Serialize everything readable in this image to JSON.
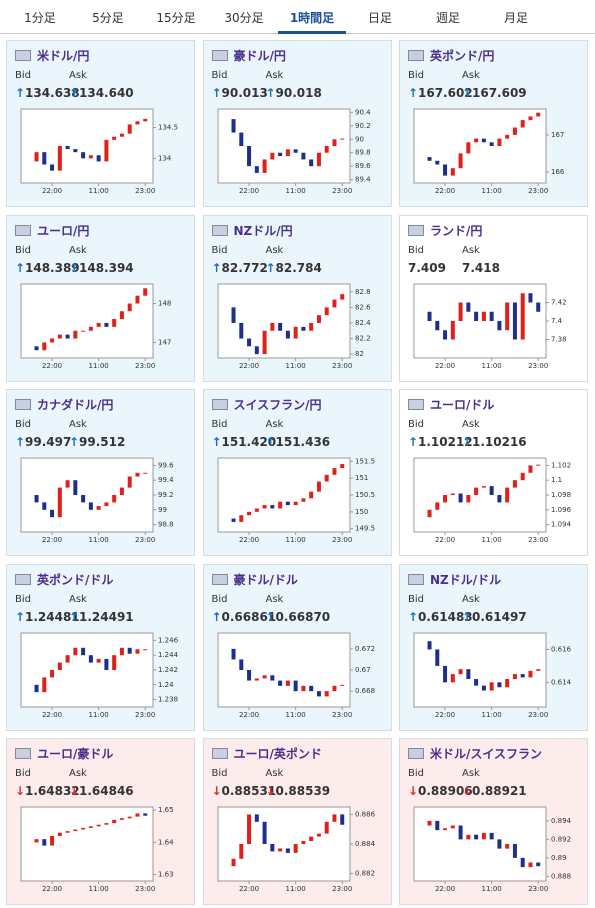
{
  "tabs": [
    "1分足",
    "5分足",
    "15分足",
    "30分足",
    "1時間足",
    "日足",
    "週足",
    "月足"
  ],
  "active_tab": 4,
  "chart_xlim": [
    -1,
    16
  ],
  "chart_xticks": [
    {
      "value": 3,
      "label": "22:00"
    },
    {
      "value": 9,
      "label": "11:00"
    },
    {
      "value": 15,
      "label": "23:00"
    }
  ],
  "cards": [
    {
      "name": "米ドル/円",
      "bid_label": "Bid",
      "ask_label": "Ask",
      "arrow": "↑",
      "arrow_color": "#1a6fc4",
      "bg": "#eaf5fc",
      "bid": "134.638",
      "ask": "134.640",
      "ylim": [
        133.6,
        134.8
      ],
      "yticks": [
        134,
        134.5
      ],
      "closes": [
        133.95,
        134.1,
        133.9,
        133.8,
        134.2,
        134.15,
        134.1,
        134.0,
        134.05,
        133.95,
        134.3,
        134.35,
        134.4,
        134.55,
        134.6,
        134.64
      ]
    },
    {
      "name": "豪ドル/円",
      "bid_label": "Bid",
      "ask_label": "Ask",
      "arrow": "↑",
      "arrow_color": "#1a6fc4",
      "bg": "#eaf5fc",
      "bid": "90.013",
      "ask": "90.018",
      "ylim": [
        89.35,
        90.45
      ],
      "yticks": [
        89.4,
        89.6,
        89.8,
        90,
        90.2,
        90.4
      ],
      "closes": [
        90.3,
        90.1,
        89.9,
        89.6,
        89.5,
        89.7,
        89.8,
        89.75,
        89.85,
        89.8,
        89.7,
        89.6,
        89.8,
        89.9,
        90.0,
        90.01
      ]
    },
    {
      "name": "英ポンド/円",
      "bid_label": "Bid",
      "ask_label": "Ask",
      "arrow": "↑",
      "arrow_color": "#1a6fc4",
      "bg": "#eaf5fc",
      "bid": "167.602",
      "ask": "167.609",
      "ylim": [
        165.7,
        167.7
      ],
      "yticks": [
        166,
        167
      ],
      "closes": [
        166.4,
        166.3,
        166.2,
        165.9,
        166.1,
        166.5,
        166.8,
        166.9,
        166.8,
        166.7,
        166.9,
        167.0,
        167.2,
        167.4,
        167.5,
        167.6
      ]
    },
    {
      "name": "ユーロ/円",
      "bid_label": "Bid",
      "ask_label": "Ask",
      "arrow": "↑",
      "arrow_color": "#1a6fc4",
      "bg": "#eaf5fc",
      "bid": "148.389",
      "ask": "148.394",
      "ylim": [
        146.6,
        148.5
      ],
      "yticks": [
        147,
        148
      ],
      "closes": [
        146.9,
        146.8,
        147.0,
        147.1,
        147.2,
        147.1,
        147.3,
        147.3,
        147.4,
        147.5,
        147.4,
        147.6,
        147.8,
        148.0,
        148.2,
        148.39
      ]
    },
    {
      "name": "NZドル/円",
      "bid_label": "Bid",
      "ask_label": "Ask",
      "arrow": "↑",
      "arrow_color": "#1a6fc4",
      "bg": "#eaf5fc",
      "bid": "82.772",
      "ask": "82.784",
      "ylim": [
        81.95,
        82.9
      ],
      "yticks": [
        82,
        82.2,
        82.4,
        82.6,
        82.8
      ],
      "closes": [
        82.6,
        82.4,
        82.2,
        82.1,
        82.0,
        82.3,
        82.4,
        82.3,
        82.2,
        82.35,
        82.3,
        82.4,
        82.5,
        82.6,
        82.7,
        82.77
      ]
    },
    {
      "name": "ランド/円",
      "bid_label": "Bid",
      "ask_label": "Ask",
      "arrow": "",
      "arrow_color": "#333333",
      "bg": "#ffffff",
      "bid": "7.409",
      "ask": "7.418",
      "ylim": [
        7.36,
        7.44
      ],
      "yticks": [
        7.38,
        7.4,
        7.42
      ],
      "closes": [
        7.41,
        7.4,
        7.39,
        7.38,
        7.4,
        7.42,
        7.41,
        7.4,
        7.41,
        7.4,
        7.39,
        7.42,
        7.38,
        7.43,
        7.42,
        7.41
      ]
    },
    {
      "name": "カナダドル/円",
      "bid_label": "Bid",
      "ask_label": "Ask",
      "arrow": "↑",
      "arrow_color": "#1a6fc4",
      "bg": "#eaf5fc",
      "bid": "99.497",
      "ask": "99.512",
      "ylim": [
        98.7,
        99.7
      ],
      "yticks": [
        98.8,
        99,
        99.2,
        99.4,
        99.6
      ],
      "closes": [
        99.2,
        99.1,
        99.0,
        98.9,
        99.3,
        99.4,
        99.2,
        99.1,
        99.0,
        99.05,
        99.1,
        99.2,
        99.3,
        99.45,
        99.5,
        99.5
      ]
    },
    {
      "name": "スイスフラン/円",
      "bid_label": "Bid",
      "ask_label": "Ask",
      "arrow": "↑",
      "arrow_color": "#1a6fc4",
      "bg": "#eaf5fc",
      "bid": "151.420",
      "ask": "151.436",
      "ylim": [
        149.4,
        151.6
      ],
      "yticks": [
        149.5,
        150,
        150.5,
        151,
        151.5
      ],
      "closes": [
        149.8,
        149.7,
        149.9,
        150.0,
        150.1,
        150.2,
        150.1,
        150.3,
        150.2,
        150.3,
        150.4,
        150.6,
        150.9,
        151.1,
        151.3,
        151.42
      ]
    },
    {
      "name": "ユーロ/ドル",
      "bid_label": "Bid",
      "ask_label": "Ask",
      "arrow": "↑",
      "arrow_color": "#1a6fc4",
      "bg": "#ffffff",
      "bid": "1.10212",
      "ask": "1.10216",
      "ylim": [
        1.093,
        1.103
      ],
      "yticks": [
        1.094,
        1.096,
        1.098,
        1.1,
        1.102
      ],
      "closes": [
        1.095,
        1.096,
        1.097,
        1.098,
        1.0982,
        1.097,
        1.098,
        1.099,
        1.0992,
        1.098,
        1.097,
        1.099,
        1.1,
        1.101,
        1.102,
        1.1021
      ]
    },
    {
      "name": "英ポンド/ドル",
      "bid_label": "Bid",
      "ask_label": "Ask",
      "arrow": "↑",
      "arrow_color": "#1a6fc4",
      "bg": "#eaf5fc",
      "bid": "1.24481",
      "ask": "1.24491",
      "ylim": [
        1.237,
        1.247
      ],
      "yticks": [
        1.238,
        1.24,
        1.242,
        1.244,
        1.246
      ],
      "closes": [
        1.24,
        1.239,
        1.241,
        1.242,
        1.243,
        1.244,
        1.245,
        1.244,
        1.243,
        1.2435,
        1.242,
        1.244,
        1.245,
        1.2442,
        1.2448,
        1.2448
      ]
    },
    {
      "name": "豪ドル/ドル",
      "bid_label": "Bid",
      "ask_label": "Ask",
      "arrow": "↑",
      "arrow_color": "#1a6fc4",
      "bg": "#eaf5fc",
      "bid": "0.66861",
      "ask": "0.66870",
      "ylim": [
        0.6665,
        0.6735
      ],
      "yticks": [
        0.668,
        0.67,
        0.672
      ],
      "closes": [
        0.672,
        0.671,
        0.67,
        0.669,
        0.6692,
        0.6695,
        0.669,
        0.6685,
        0.669,
        0.668,
        0.6685,
        0.668,
        0.6675,
        0.668,
        0.6685,
        0.6686
      ]
    },
    {
      "name": "NZドル/ドル",
      "bid_label": "Bid",
      "ask_label": "Ask",
      "arrow": "↑",
      "arrow_color": "#1a6fc4",
      "bg": "#eaf5fc",
      "bid": "0.61483",
      "ask": "0.61497",
      "ylim": [
        0.6125,
        0.617
      ],
      "yticks": [
        0.614,
        0.616
      ],
      "closes": [
        0.6165,
        0.616,
        0.615,
        0.614,
        0.6145,
        0.6148,
        0.6142,
        0.6138,
        0.6135,
        0.614,
        0.6137,
        0.6142,
        0.6145,
        0.6143,
        0.6147,
        0.6148
      ]
    },
    {
      "name": "ユーロ/豪ドル",
      "bid_label": "Bid",
      "ask_label": "Ask",
      "arrow": "↓",
      "arrow_color": "#d9302c",
      "bg": "#fcecec",
      "bid": "1.64832",
      "ask": "1.64846",
      "ylim": [
        1.628,
        1.651
      ],
      "yticks": [
        1.63,
        1.64,
        1.65
      ],
      "closes": [
        1.64,
        1.641,
        1.639,
        1.642,
        1.643,
        1.6435,
        1.644,
        1.6445,
        1.645,
        1.6455,
        1.646,
        1.647,
        1.6475,
        1.648,
        1.649,
        1.6483
      ]
    },
    {
      "name": "ユーロ/英ポンド",
      "bid_label": "Bid",
      "ask_label": "Ask",
      "arrow": "↓",
      "arrow_color": "#d9302c",
      "bg": "#fcecec",
      "bid": "0.88531",
      "ask": "0.88539",
      "ylim": [
        0.8815,
        0.8865
      ],
      "yticks": [
        0.882,
        0.884,
        0.886
      ],
      "closes": [
        0.8825,
        0.883,
        0.884,
        0.886,
        0.8855,
        0.884,
        0.8835,
        0.8837,
        0.8834,
        0.884,
        0.8842,
        0.8845,
        0.8847,
        0.8855,
        0.886,
        0.8853
      ]
    },
    {
      "name": "米ドル/スイスフラン",
      "bid_label": "Bid",
      "ask_label": "Ask",
      "arrow": "↓",
      "arrow_color": "#d9302c",
      "bg": "#fcecec",
      "bid": "0.88906",
      "ask": "0.88921",
      "ylim": [
        0.8875,
        0.8955
      ],
      "yticks": [
        0.888,
        0.89,
        0.892,
        0.894
      ],
      "closes": [
        0.8935,
        0.894,
        0.893,
        0.8932,
        0.8935,
        0.892,
        0.8925,
        0.892,
        0.8927,
        0.892,
        0.891,
        0.8915,
        0.89,
        0.889,
        0.8895,
        0.8891
      ]
    }
  ]
}
